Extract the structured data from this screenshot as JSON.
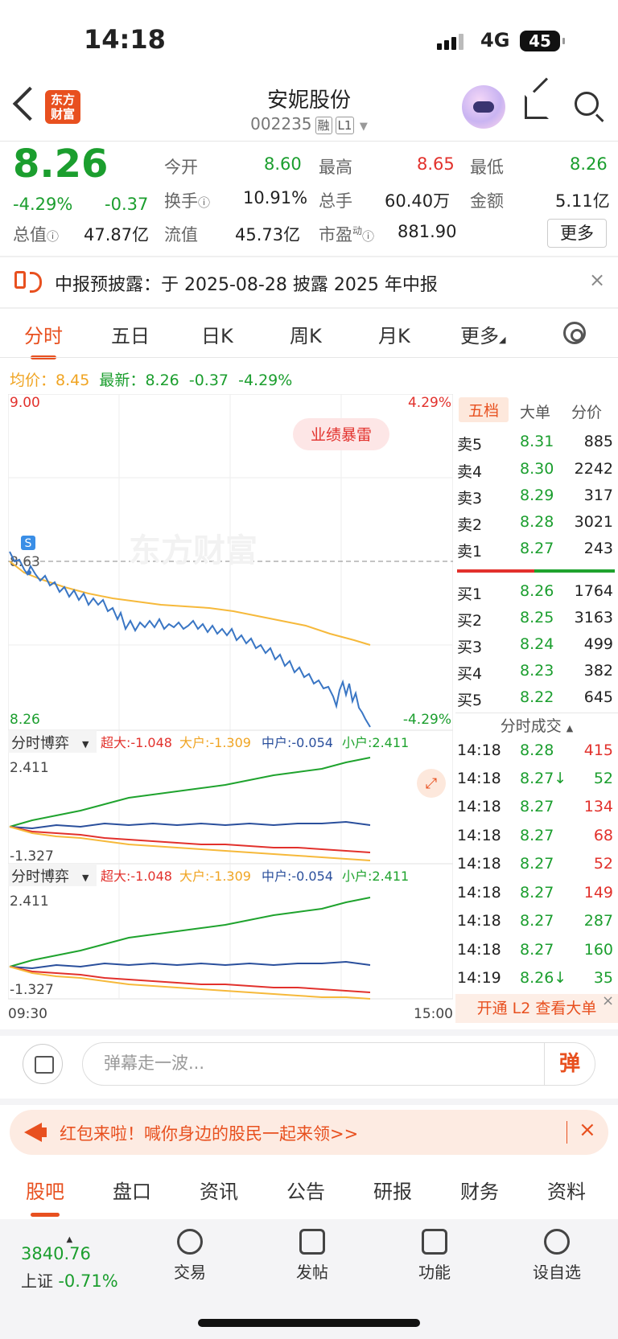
{
  "status": {
    "time": "14:18",
    "network": "4G",
    "battery": "45"
  },
  "header": {
    "logo_line1": "东方",
    "logo_line2": "财富",
    "title": "安妮股份",
    "code": "002235",
    "tag1": "融",
    "tag2": "L1"
  },
  "quote": {
    "price": "8.26",
    "change_pct": "-4.29%",
    "change": "-0.37",
    "open_label": "今开",
    "open": "8.60",
    "high_label": "最高",
    "high": "8.65",
    "low_label": "最低",
    "low": "8.26",
    "turnover_label": "换手",
    "turnover": "10.91%",
    "volume_label": "总手",
    "volume": "60.40万",
    "amount_label": "金额",
    "amount": "5.11亿",
    "mktcap_label": "总值",
    "mktcap": "47.87亿",
    "float_label": "流值",
    "float": "45.73亿",
    "pe_label": "市盈",
    "pe_sup": "动",
    "pe": "881.90",
    "more": "更多"
  },
  "notice": {
    "text": "中报预披露：于 2025-08-28 披露 2025 年中报",
    "close": "×"
  },
  "tabs": [
    "分时",
    "五日",
    "日K",
    "周K",
    "月K",
    "更多"
  ],
  "avg_info": {
    "avg_label": "均价：",
    "avg": "8.45",
    "latest_label": "最新：",
    "latest": "8.26",
    "chg": "-0.37",
    "pct": "-4.29%"
  },
  "chart": {
    "y_top": "9.00",
    "pct_top": "4.29%",
    "y_ref": "8.63",
    "y_bottom": "8.26",
    "pct_bottom": "-4.29%",
    "badge": "业绩暴雷",
    "watermark": "东方财富",
    "s_marker": "S",
    "panel_title": "分时博弈",
    "super_label": "超大:-1.048",
    "big_label": "大户:-1.309",
    "mid_label": "中户:-0.054",
    "small_label": "小户:2.411",
    "sub_max": "2.411",
    "sub_min": "-1.327",
    "time_start": "09:30",
    "time_end": "15:00",
    "colors": {
      "price": "#3a76c4",
      "avg": "#f6b93b",
      "super": "#e2312c",
      "big": "#f6b93b",
      "mid": "#2a4f9c",
      "small": "#1fa32e"
    }
  },
  "chart_data": {
    "type": "line",
    "x": [
      "09:30",
      "15:00"
    ],
    "series": [],
    "ylim": [
      8.26,
      9.0
    ],
    "reference": 8.63
  },
  "orderbook": {
    "tabs": [
      "五档",
      "大单",
      "分价"
    ],
    "asks": [
      {
        "label": "卖5",
        "price": "8.31",
        "vol": "885"
      },
      {
        "label": "卖4",
        "price": "8.30",
        "vol": "2242"
      },
      {
        "label": "卖3",
        "price": "8.29",
        "vol": "317"
      },
      {
        "label": "卖2",
        "price": "8.28",
        "vol": "3021"
      },
      {
        "label": "卖1",
        "price": "8.27",
        "vol": "243"
      }
    ],
    "bids": [
      {
        "label": "买1",
        "price": "8.26",
        "vol": "1764"
      },
      {
        "label": "买2",
        "price": "8.25",
        "vol": "3163"
      },
      {
        "label": "买3",
        "price": "8.24",
        "vol": "499"
      },
      {
        "label": "买4",
        "price": "8.23",
        "vol": "382"
      },
      {
        "label": "买5",
        "price": "8.22",
        "vol": "645"
      }
    ],
    "trades_title": "分时成交",
    "trades": [
      {
        "time": "14:18",
        "price": "8.28",
        "vol": "415",
        "dir": "up"
      },
      {
        "time": "14:18",
        "price": "8.27↓",
        "vol": "52",
        "dir": "up"
      },
      {
        "time": "14:18",
        "price": "8.27",
        "vol": "134",
        "dir": "up"
      },
      {
        "time": "14:18",
        "price": "8.27",
        "vol": "68",
        "dir": "up"
      },
      {
        "time": "14:18",
        "price": "8.27",
        "vol": "52",
        "dir": "up"
      },
      {
        "time": "14:18",
        "price": "8.27",
        "vol": "149",
        "dir": "up"
      },
      {
        "time": "14:18",
        "price": "8.27",
        "vol": "287",
        "dir": "down"
      },
      {
        "time": "14:18",
        "price": "8.27",
        "vol": "160",
        "dir": "down"
      },
      {
        "time": "14:19",
        "price": "8.26↓",
        "vol": "35",
        "dir": "down"
      }
    ],
    "l2": "开通 L2 查看大单"
  },
  "danmu": {
    "placeholder": "弹幕走一波...",
    "btn": "弹"
  },
  "promo": {
    "text": "红包来啦！喊你身边的股民一起来领>>",
    "close": "×"
  },
  "bottom_tabs": [
    "股吧",
    "盘口",
    "资讯",
    "公告",
    "研报",
    "财务",
    "资料"
  ],
  "bottom_bar": {
    "index_value": "3840.76",
    "index_name": "上证",
    "index_pct": "-0.71%",
    "items": [
      "交易",
      "发帖",
      "功能",
      "设自选"
    ]
  }
}
